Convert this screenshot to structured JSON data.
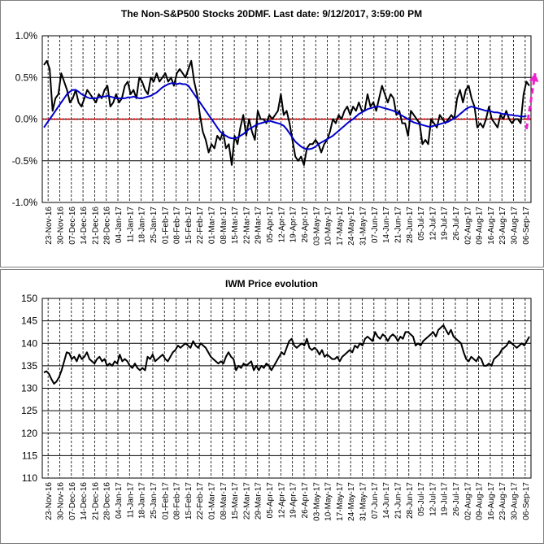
{
  "chart_data": [
    {
      "type": "line",
      "title": "The Non-S&P500 Stocks 20DMF. Last date: 9/12/2017, 3:59:00 PM",
      "y_tick_labels": [
        "1.0%",
        "0.5%",
        "0.0%",
        "-0.5%",
        "-1.0%"
      ],
      "y_ticks": [
        1.0,
        0.5,
        0.0,
        -0.5,
        -1.0
      ],
      "ylim": [
        -1.0,
        1.0
      ],
      "x_tick_labels": [
        "23-Nov-16",
        "30-Nov-16",
        "07-Dec-16",
        "14-Dec-16",
        "21-Dec-16",
        "28-Dec-16",
        "04-Jan-17",
        "11-Jan-17",
        "18-Jan-17",
        "25-Jan-17",
        "01-Feb-17",
        "08-Feb-17",
        "15-Feb-17",
        "22-Feb-17",
        "01-Mar-17",
        "08-Mar-17",
        "15-Mar-17",
        "22-Mar-17",
        "29-Mar-17",
        "05-Apr-17",
        "12-Apr-17",
        "19-Apr-17",
        "26-Apr-17",
        "03-May-17",
        "10-May-17",
        "17-May-17",
        "24-May-17",
        "31-May-17",
        "07-Jun-17",
        "14-Jun-17",
        "21-Jun-17",
        "28-Jun-17",
        "05-Jul-17",
        "12-Jul-17",
        "19-Jul-17",
        "26-Jul-17",
        "02-Aug-17",
        "09-Aug-17",
        "16-Aug-17",
        "23-Aug-17",
        "30-Aug-17",
        "06-Sep-17"
      ],
      "grid": true,
      "zero_line_color": "#dd0000",
      "series": [
        {
          "color": "#000000",
          "values": [
            0.65,
            0.7,
            0.6,
            0.1,
            0.25,
            0.3,
            0.55,
            0.45,
            0.35,
            0.2,
            0.25,
            0.35,
            0.2,
            0.15,
            0.25,
            0.35,
            0.3,
            0.25,
            0.2,
            0.3,
            0.25,
            0.35,
            0.4,
            0.15,
            0.2,
            0.3,
            0.2,
            0.25,
            0.4,
            0.45,
            0.3,
            0.35,
            0.25,
            0.5,
            0.45,
            0.35,
            0.3,
            0.5,
            0.45,
            0.55,
            0.45,
            0.5,
            0.55,
            0.45,
            0.5,
            0.4,
            0.55,
            0.6,
            0.55,
            0.5,
            0.6,
            0.7,
            0.45,
            0.3,
            0.05,
            -0.15,
            -0.25,
            -0.4,
            -0.3,
            -0.35,
            -0.2,
            -0.25,
            -0.15,
            -0.35,
            -0.3,
            -0.55,
            -0.2,
            -0.3,
            -0.1,
            0.05,
            -0.2,
            0.0,
            -0.15,
            -0.25,
            0.1,
            0.0,
            0.0,
            -0.05,
            0.05,
            0.0,
            0.05,
            0.1,
            0.3,
            0.05,
            0.1,
            -0.05,
            -0.25,
            -0.45,
            -0.5,
            -0.45,
            -0.55,
            -0.35,
            -0.3,
            -0.3,
            -0.25,
            -0.3,
            -0.4,
            -0.3,
            -0.25,
            -0.15,
            0.0,
            -0.05,
            0.05,
            0.0,
            0.1,
            0.15,
            0.05,
            0.15,
            0.1,
            0.2,
            0.1,
            0.1,
            0.3,
            0.15,
            0.2,
            0.1,
            0.25,
            0.4,
            0.3,
            0.2,
            0.3,
            0.25,
            0.05,
            0.1,
            -0.05,
            -0.05,
            -0.2,
            0.1,
            0.05,
            0.0,
            -0.05,
            -0.3,
            -0.25,
            -0.3,
            0.0,
            -0.05,
            -0.1,
            0.05,
            0.0,
            -0.05,
            0.0,
            0.05,
            0.0,
            0.25,
            0.35,
            0.2,
            0.35,
            0.4,
            0.25,
            0.15,
            -0.1,
            -0.05,
            -0.1,
            0.0,
            0.15,
            0.0,
            -0.05,
            -0.1,
            0.05,
            0.0,
            0.1,
            0.0,
            -0.05,
            0.0,
            0.0,
            -0.05,
            0.3,
            0.45,
            0.4
          ]
        },
        {
          "color": "#0000cc",
          "values": [
            -0.1,
            -0.05,
            0.0,
            0.05,
            0.1,
            0.15,
            0.2,
            0.25,
            0.3,
            0.33,
            0.35,
            0.35,
            0.33,
            0.3,
            0.28,
            0.26,
            0.25,
            0.25,
            0.25,
            0.26,
            0.27,
            0.27,
            0.28,
            0.27,
            0.26,
            0.25,
            0.25,
            0.25,
            0.25,
            0.26,
            0.26,
            0.27,
            0.26,
            0.25,
            0.25,
            0.26,
            0.27,
            0.28,
            0.3,
            0.32,
            0.35,
            0.38,
            0.4,
            0.42,
            0.43,
            0.43,
            0.42,
            0.43,
            0.42,
            0.42,
            0.4,
            0.35,
            0.3,
            0.25,
            0.2,
            0.15,
            0.1,
            0.05,
            0.0,
            -0.05,
            -0.1,
            -0.15,
            -0.18,
            -0.2,
            -0.22,
            -0.23,
            -0.23,
            -0.22,
            -0.2,
            -0.18,
            -0.15,
            -0.12,
            -0.1,
            -0.08,
            -0.06,
            -0.05,
            -0.04,
            -0.03,
            -0.02,
            -0.03,
            -0.04,
            -0.05,
            -0.06,
            -0.08,
            -0.12,
            -0.17,
            -0.22,
            -0.27,
            -0.3,
            -0.33,
            -0.35,
            -0.36,
            -0.36,
            -0.35,
            -0.33,
            -0.3,
            -0.28,
            -0.26,
            -0.24,
            -0.22,
            -0.2,
            -0.17,
            -0.14,
            -0.11,
            -0.08,
            -0.05,
            -0.02,
            0.0,
            0.03,
            0.06,
            0.08,
            0.1,
            0.12,
            0.13,
            0.14,
            0.15,
            0.15,
            0.14,
            0.13,
            0.12,
            0.11,
            0.1,
            0.08,
            0.06,
            0.04,
            0.02,
            0.0,
            -0.02,
            -0.04,
            -0.05,
            -0.06,
            -0.07,
            -0.08,
            -0.09,
            -0.09,
            -0.08,
            -0.07,
            -0.06,
            -0.05,
            -0.04,
            -0.03,
            -0.01,
            0.01,
            0.03,
            0.06,
            0.09,
            0.12,
            0.14,
            0.15,
            0.14,
            0.13,
            0.12,
            0.11,
            0.1,
            0.1,
            0.09,
            0.08,
            0.08,
            0.07,
            0.06,
            0.06,
            0.05,
            0.05,
            0.04,
            0.04,
            0.03,
            0.03,
            0.04
          ]
        }
      ],
      "annotation": {
        "type": "dashed-arrow",
        "color": "#ee22cc",
        "from": [
          167,
          -0.12
        ],
        "to": [
          170,
          0.55
        ]
      }
    },
    {
      "type": "line",
      "title": "IWM Price evolution",
      "y_tick_labels": [
        "150",
        "145",
        "140",
        "135",
        "130",
        "125",
        "120",
        "115",
        "110"
      ],
      "y_ticks": [
        150,
        145,
        140,
        135,
        130,
        125,
        120,
        115,
        110
      ],
      "ylim": [
        110,
        150
      ],
      "x_tick_labels": [
        "23-Nov-16",
        "30-Nov-16",
        "07-Dec-16",
        "14-Dec-16",
        "21-Dec-16",
        "28-Dec-16",
        "04-Jan-17",
        "11-Jan-17",
        "18-Jan-17",
        "25-Jan-17",
        "01-Feb-17",
        "08-Feb-17",
        "15-Feb-17",
        "22-Feb-17",
        "01-Mar-17",
        "08-Mar-17",
        "15-Mar-17",
        "22-Mar-17",
        "29-Mar-17",
        "05-Apr-17",
        "12-Apr-17",
        "19-Apr-17",
        "26-Apr-17",
        "03-May-17",
        "10-May-17",
        "17-May-17",
        "24-May-17",
        "31-May-17",
        "07-Jun-17",
        "14-Jun-17",
        "21-Jun-17",
        "28-Jun-17",
        "05-Jul-17",
        "12-Jul-17",
        "19-Jul-17",
        "26-Jul-17",
        "02-Aug-17",
        "09-Aug-17",
        "16-Aug-17",
        "23-Aug-17",
        "30-Aug-17",
        "06-Sep-17"
      ],
      "grid": true,
      "series": [
        {
          "color": "#000000",
          "values": [
            133.5,
            133.8,
            133.2,
            132.0,
            131.0,
            131.5,
            132.5,
            134.0,
            136.0,
            138.0,
            137.8,
            136.5,
            137.0,
            136.0,
            137.5,
            136.5,
            137.0,
            138.0,
            136.5,
            136.0,
            135.5,
            136.5,
            137.0,
            136.0,
            136.5,
            135.0,
            135.5,
            135.0,
            136.0,
            135.5,
            137.5,
            136.0,
            136.5,
            136.0,
            135.0,
            134.5,
            135.5,
            134.5,
            134.0,
            134.5,
            134.0,
            137.0,
            136.5,
            137.5,
            136.0,
            136.5,
            137.0,
            137.5,
            136.5,
            136.0,
            137.0,
            138.0,
            138.5,
            139.5,
            139.0,
            139.5,
            140.0,
            139.5,
            139.0,
            140.5,
            139.5,
            139.0,
            140.0,
            139.5,
            139.0,
            138.0,
            137.0,
            136.5,
            136.0,
            135.5,
            136.0,
            135.5,
            137.0,
            138.0,
            137.0,
            136.5,
            134.0,
            135.0,
            134.5,
            135.5,
            135.0,
            135.5,
            136.0,
            134.0,
            135.0,
            134.0,
            135.0,
            134.5,
            135.5,
            135.0,
            134.0,
            135.0,
            136.0,
            137.0,
            138.0,
            137.5,
            139.0,
            140.5,
            141.0,
            139.5,
            139.0,
            139.5,
            140.0,
            139.5,
            141.0,
            139.0,
            138.5,
            139.0,
            138.5,
            137.5,
            138.5,
            137.0,
            137.5,
            137.0,
            136.5,
            136.5,
            137.0,
            136.0,
            137.0,
            137.5,
            138.0,
            138.5,
            138.0,
            139.5,
            139.0,
            140.0,
            139.5,
            141.0,
            141.5,
            141.0,
            140.5,
            142.5,
            141.5,
            141.0,
            142.0,
            141.5,
            140.5,
            141.5,
            142.0,
            141.5,
            140.5,
            141.5,
            141.0,
            142.5,
            142.5,
            142.0,
            141.5,
            139.5,
            140.0,
            139.5,
            140.5,
            141.0,
            141.5,
            142.0,
            142.5,
            141.5,
            143.0,
            143.5,
            144.0,
            143.0,
            142.0,
            143.0,
            141.5,
            141.0,
            140.5,
            140.0,
            138.0,
            136.5,
            136.0,
            137.0,
            136.5,
            136.0,
            137.0,
            136.5,
            135.0,
            135.0,
            135.5,
            135.0,
            136.5,
            137.0,
            137.5,
            138.5,
            139.0,
            139.5,
            140.5,
            140.0,
            139.5,
            139.0,
            139.5,
            140.0,
            139.5,
            140.5,
            141.5
          ]
        }
      ]
    }
  ]
}
